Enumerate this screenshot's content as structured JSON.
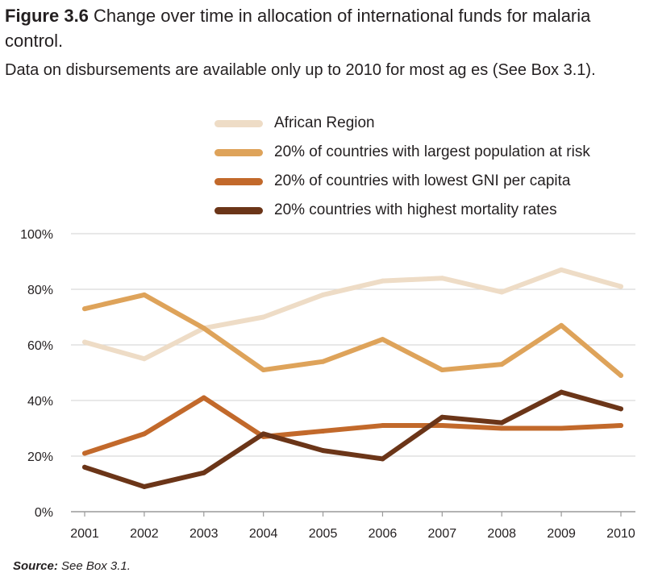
{
  "header": {
    "figure_label": "Figure 3.6",
    "title": " Change over time in allocation of international funds for malaria control.",
    "subtitle": "Data on disbursements are available only up to 2010 for most ag      es (See Box 3.1)."
  },
  "source": {
    "label": "Source:",
    "text": " See Box 3.1."
  },
  "chart_data": {
    "type": "line",
    "title": "Change over time in allocation of international funds for malaria control.",
    "xlabel": "",
    "ylabel": "",
    "x": [
      "2001",
      "2002",
      "2003",
      "2004",
      "2005",
      "2006",
      "2007",
      "2008",
      "2009",
      "2010"
    ],
    "ylim": [
      0,
      100
    ],
    "yticks": [
      "0%",
      "20%",
      "40%",
      "60%",
      "80%",
      "100%"
    ],
    "grid": "horizontal",
    "legend_position": "top",
    "series": [
      {
        "name": "African Region",
        "color": "#eedcc6",
        "values": [
          61,
          55,
          66,
          70,
          78,
          83,
          84,
          79,
          87,
          81
        ]
      },
      {
        "name": "20% of countries with largest population at risk",
        "color": "#dea35a",
        "values": [
          73,
          78,
          66,
          51,
          54,
          62,
          51,
          53,
          67,
          49
        ]
      },
      {
        "name": "20% of countries with lowest GNI per capita",
        "color": "#c2692b",
        "values": [
          21,
          28,
          41,
          27,
          29,
          31,
          31,
          30,
          30,
          31
        ]
      },
      {
        "name": "20% countries with highest mortality rates",
        "color": "#6b3518",
        "values": [
          16,
          9,
          14,
          28,
          22,
          19,
          34,
          32,
          43,
          37
        ]
      }
    ]
  }
}
